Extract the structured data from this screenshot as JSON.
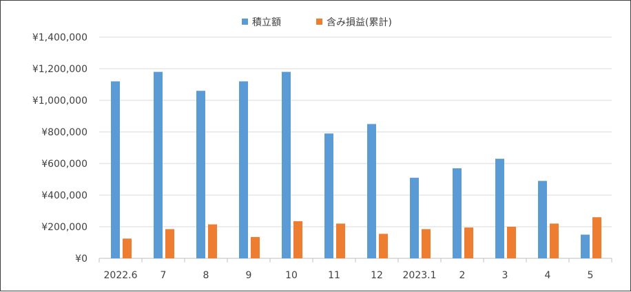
{
  "chart_data": {
    "type": "bar",
    "categories": [
      "2022.6",
      "7",
      "8",
      "9",
      "10",
      "11",
      "12",
      "2023.1",
      "2",
      "3",
      "4",
      "5"
    ],
    "series": [
      {
        "name": "積立額",
        "color": "#5b9bd5",
        "values": [
          1120000,
          1180000,
          1060000,
          1120000,
          1180000,
          790000,
          850000,
          510000,
          570000,
          630000,
          490000,
          150000
        ]
      },
      {
        "name": "含み損益(累計)",
        "color": "#ed7d31",
        "values": [
          125000,
          185000,
          215000,
          135000,
          235000,
          220000,
          155000,
          185000,
          195000,
          200000,
          220000,
          260000
        ]
      }
    ],
    "y_ticks": [
      "¥0",
      "¥200,000",
      "¥400,000",
      "¥600,000",
      "¥800,000",
      "¥1,000,000",
      "¥1,200,000",
      "¥1,400,000"
    ],
    "ylim": [
      0,
      1400000
    ],
    "grid": true,
    "legend_position": "top"
  }
}
